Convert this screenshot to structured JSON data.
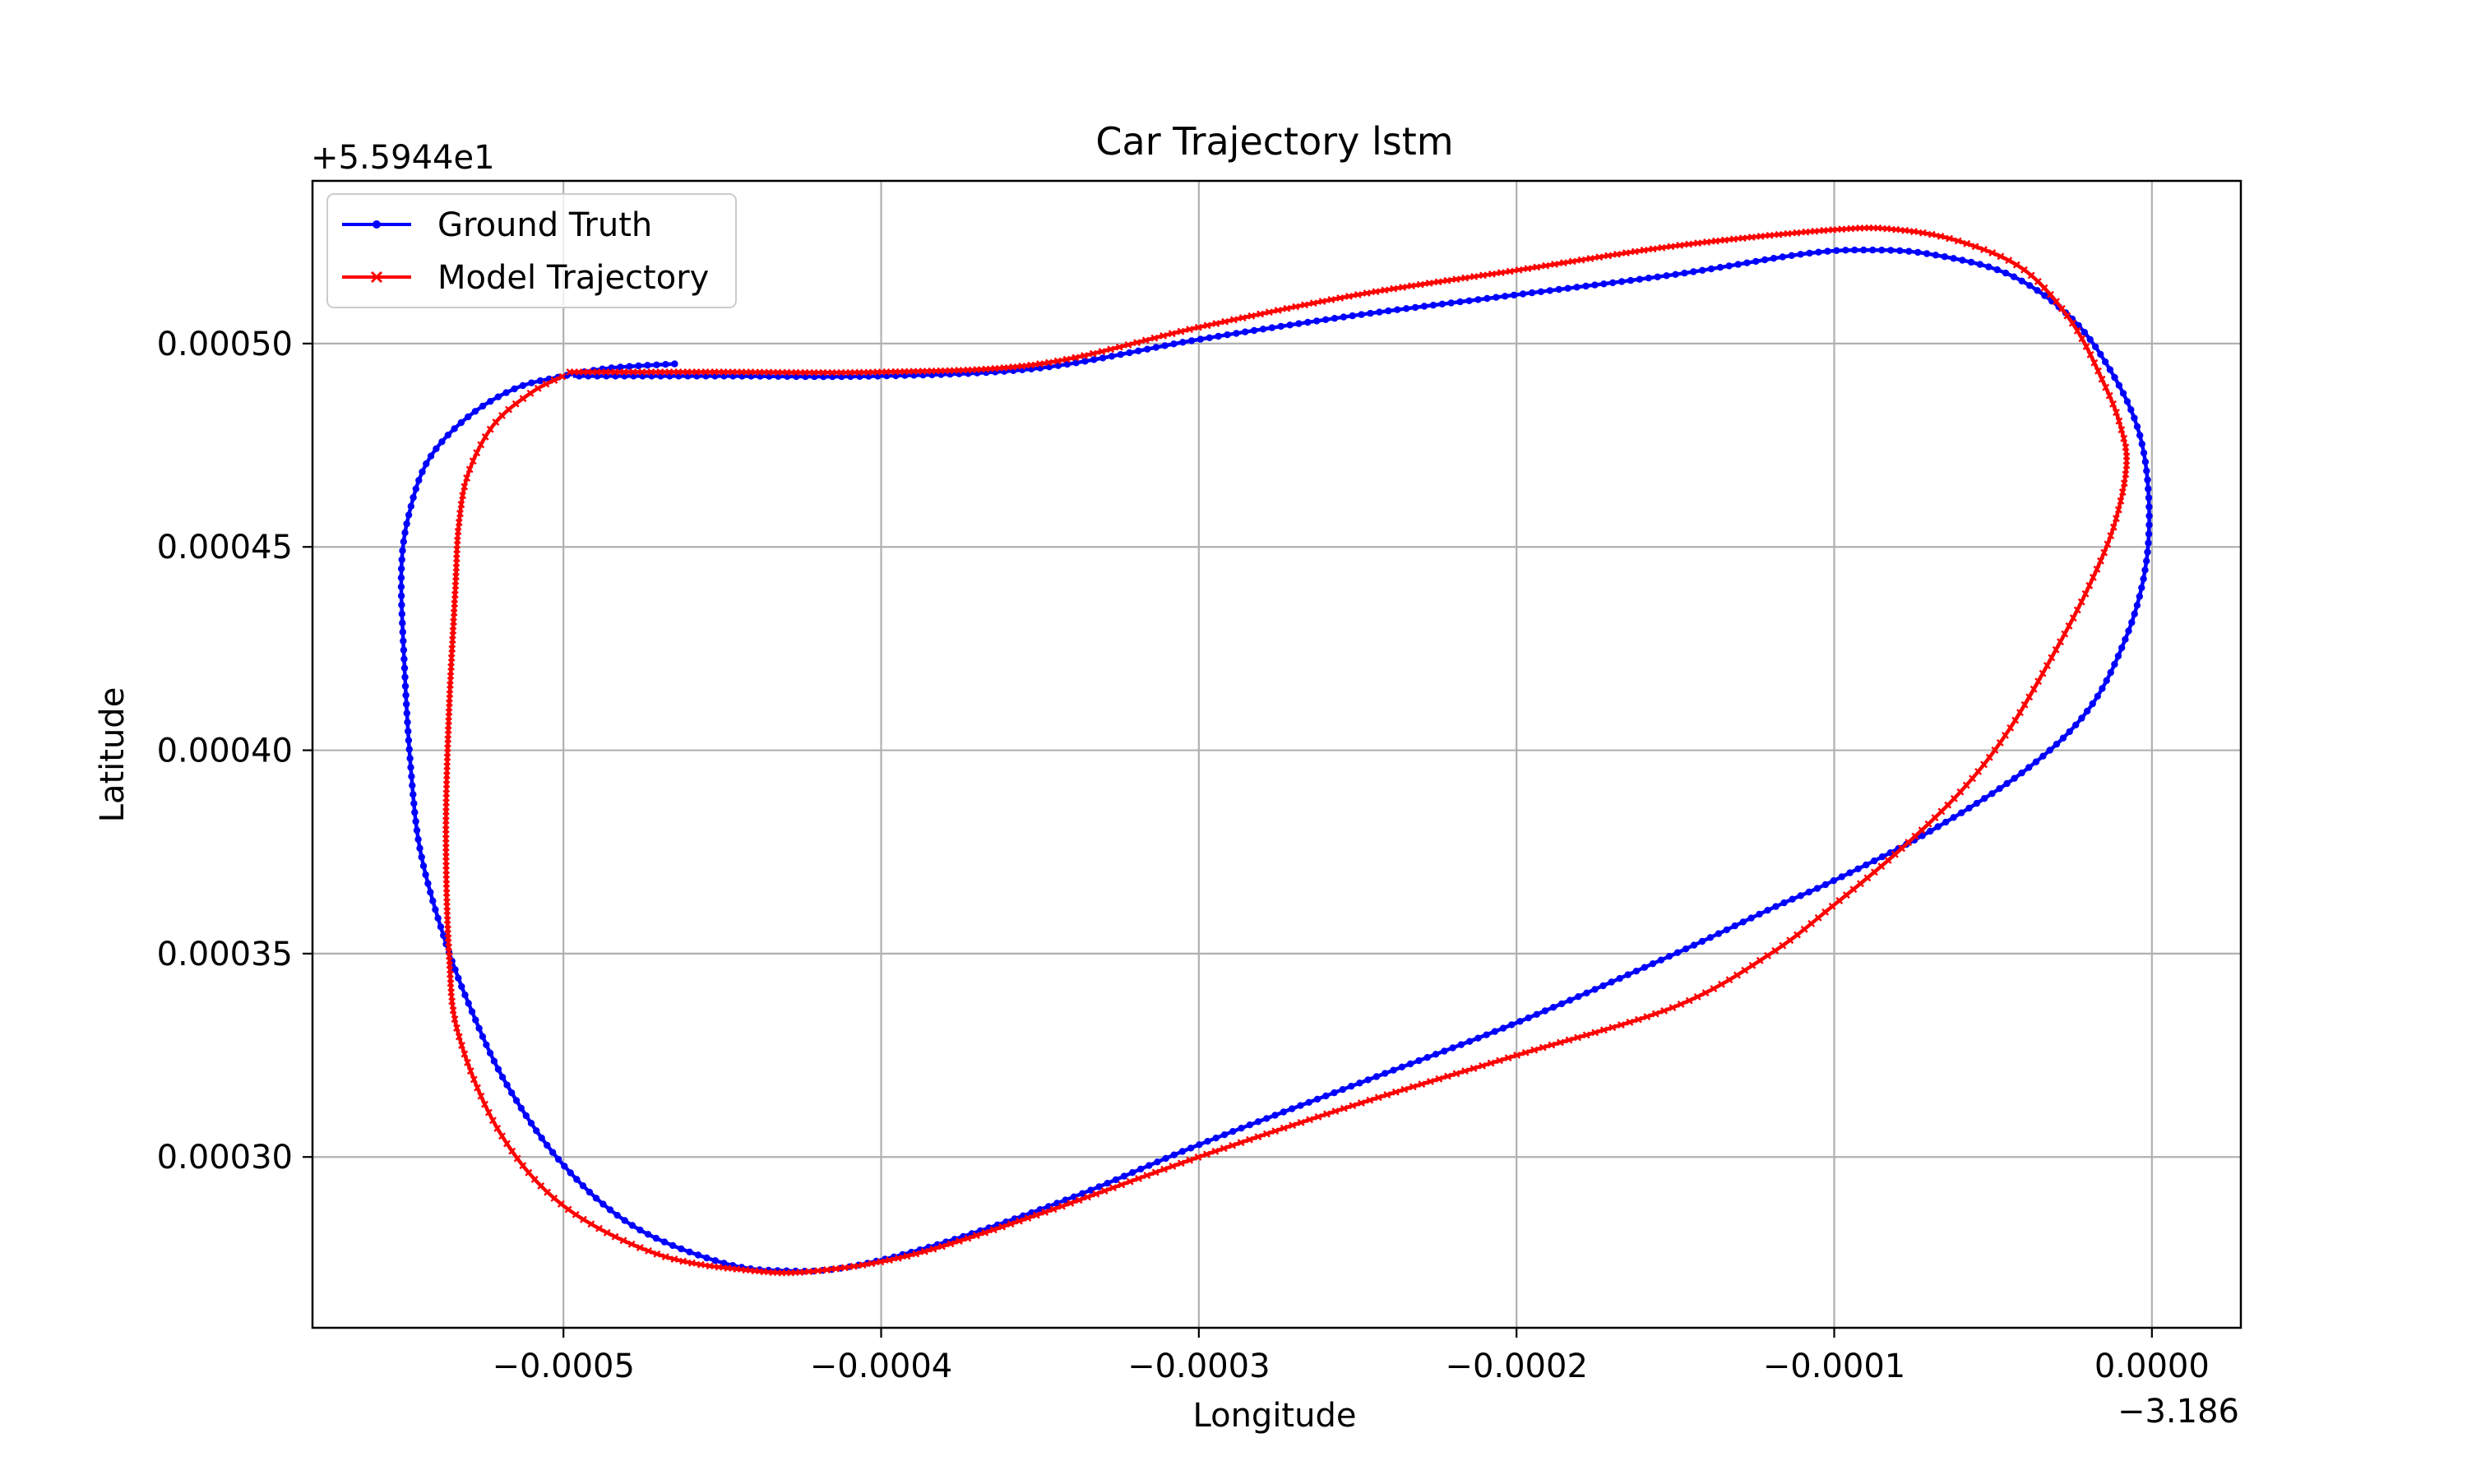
{
  "chart_data": {
    "type": "line",
    "title": "Car Trajectory lstm",
    "xlabel": "Longitude",
    "ylabel": "Latitude",
    "x_offset_label": "−3.186",
    "y_offset_label": "+5.5944e1",
    "xlim": [
      -0.000579,
      2.8e-05
    ],
    "ylim": [
      0.000258,
      0.00054
    ],
    "xticks": [
      -0.0005,
      -0.0004,
      -0.0003,
      -0.0002,
      -0.0001,
      0.0
    ],
    "xtick_labels": [
      "−0.0005",
      "−0.0004",
      "−0.0003",
      "−0.0002",
      "−0.0001",
      "0.0000"
    ],
    "yticks": [
      0.0003,
      0.00035,
      0.0004,
      0.00045,
      0.0005
    ],
    "ytick_labels": [
      "0.00030",
      "0.00035",
      "0.00040",
      "0.00045",
      "0.00050"
    ],
    "grid": true,
    "legend_position": "top-left",
    "series": [
      {
        "name": "Ground Truth",
        "color": "#0000ff",
        "marker": "dot",
        "points": [
          [
            -0.000465,
            0.000495
          ],
          [
            -0.000485,
            0.000494
          ],
          [
            -0.0005,
            0.000492
          ],
          [
            -0.000515,
            0.000489
          ],
          [
            -0.00053,
            0.000482
          ],
          [
            -0.000542,
            0.000472
          ],
          [
            -0.000548,
            0.00046
          ],
          [
            -0.000551,
            0.000445
          ],
          [
            -0.00055,
            0.00042
          ],
          [
            -0.000548,
            0.000395
          ],
          [
            -0.000545,
            0.000375
          ],
          [
            -0.000538,
            0.000355
          ],
          [
            -0.00053,
            0.000338
          ],
          [
            -0.000518,
            0.000318
          ],
          [
            -0.0005,
            0.000298
          ],
          [
            -0.000478,
            0.000283
          ],
          [
            -0.00045,
            0.000274
          ],
          [
            -0.00043,
            0.000272
          ],
          [
            -0.00041,
            0.000273
          ],
          [
            -0.00038,
            0.000279
          ],
          [
            -0.00034,
            0.00029
          ],
          [
            -0.0003,
            0.000303
          ],
          [
            -0.00025,
            0.000318
          ],
          [
            -0.0002,
            0.000333
          ],
          [
            -0.00015,
            0.00035
          ],
          [
            -0.00012,
            0.000361
          ],
          [
            -0.0001,
            0.000368
          ],
          [
            -7e-05,
            0.00038
          ],
          [
            -4e-05,
            0.000395
          ],
          [
            -2e-05,
            0.00041
          ],
          [
            -8e-06,
            0.000428
          ],
          [
            -2e-06,
            0.000445
          ],
          [
            -1e-06,
            0.000462
          ],
          [
            -4e-06,
            0.000478
          ],
          [
            -1.2e-05,
            0.000492
          ],
          [
            -2.5e-05,
            0.000506
          ],
          [
            -4.5e-05,
            0.000517
          ],
          [
            -7e-05,
            0.000522
          ],
          [
            -9e-05,
            0.000523
          ],
          [
            -0.00011,
            0.000522
          ],
          [
            -0.00015,
            0.000517
          ],
          [
            -0.0002,
            0.000512
          ],
          [
            -0.00025,
            0.000507
          ],
          [
            -0.0003,
            0.000501
          ],
          [
            -0.00035,
            0.000494
          ],
          [
            -0.0004,
            0.000492
          ],
          [
            -0.00045,
            0.000492
          ],
          [
            -0.000497,
            0.000492
          ]
        ]
      },
      {
        "name": "Model Trajectory",
        "color": "#ff0000",
        "marker": "x",
        "points": [
          [
            -0.000498,
            0.000493
          ],
          [
            -0.00045,
            0.000493
          ],
          [
            -0.0004,
            0.000493
          ],
          [
            -0.00035,
            0.000495
          ],
          [
            -0.0003,
            0.000504
          ],
          [
            -0.00025,
            0.000512
          ],
          [
            -0.0002,
            0.000518
          ],
          [
            -0.00015,
            0.000524
          ],
          [
            -0.0001,
            0.000528
          ],
          [
            -8e-05,
            0.000528
          ],
          [
            -6e-05,
            0.000525
          ],
          [
            -4e-05,
            0.000518
          ],
          [
            -2.5e-05,
            0.000505
          ],
          [
            -1.5e-05,
            0.00049
          ],
          [
            -1e-05,
            0.00048
          ],
          [
            -8e-06,
            0.00047
          ],
          [
            -1.2e-05,
            0.000455
          ],
          [
            -2e-05,
            0.00044
          ],
          [
            -3e-05,
            0.000425
          ],
          [
            -4.5e-05,
            0.000405
          ],
          [
            -6e-05,
            0.00039
          ],
          [
            -8e-05,
            0.000375
          ],
          [
            -0.0001,
            0.000362
          ],
          [
            -0.00012,
            0.00035
          ],
          [
            -0.00015,
            0.000337
          ],
          [
            -0.0002,
            0.000325
          ],
          [
            -0.00025,
            0.000313
          ],
          [
            -0.0003,
            0.0003
          ],
          [
            -0.00035,
            0.000286
          ],
          [
            -0.00039,
            0.000276
          ],
          [
            -0.00042,
            0.000272
          ],
          [
            -0.00044,
            0.000272
          ],
          [
            -0.00047,
            0.000276
          ],
          [
            -0.0005,
            0.000288
          ],
          [
            -0.00052,
            0.000306
          ],
          [
            -0.000533,
            0.00033
          ],
          [
            -0.000536,
            0.00035
          ],
          [
            -0.000537,
            0.00038
          ],
          [
            -0.000536,
            0.00041
          ],
          [
            -0.000534,
            0.00044
          ],
          [
            -0.000533,
            0.000455
          ],
          [
            -0.00053,
            0.000468
          ],
          [
            -0.000522,
            0.00048
          ],
          [
            -0.00051,
            0.000488
          ],
          [
            -0.0005,
            0.000492
          ]
        ]
      }
    ]
  }
}
